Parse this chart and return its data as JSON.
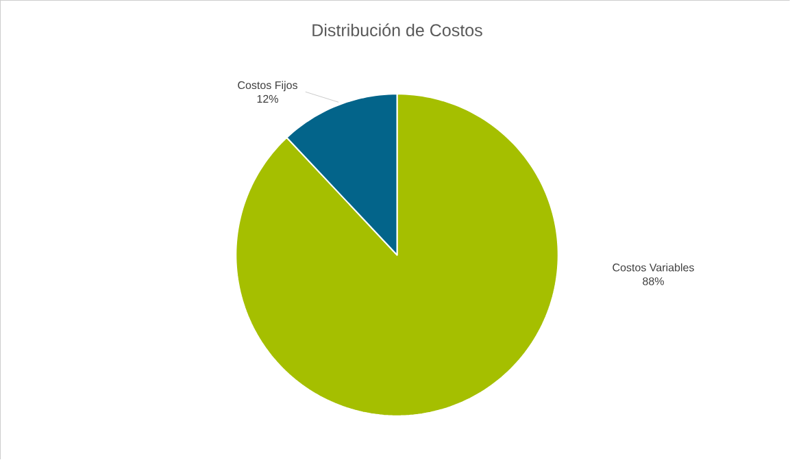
{
  "chart_data": {
    "type": "pie",
    "title": "Distribución de Costos",
    "categories": [
      "Costos Variables",
      "Costos Fijos"
    ],
    "values": [
      88,
      12
    ],
    "colors": [
      "#a5bf00",
      "#03648a"
    ],
    "value_labels": [
      "88%",
      "12%"
    ]
  }
}
